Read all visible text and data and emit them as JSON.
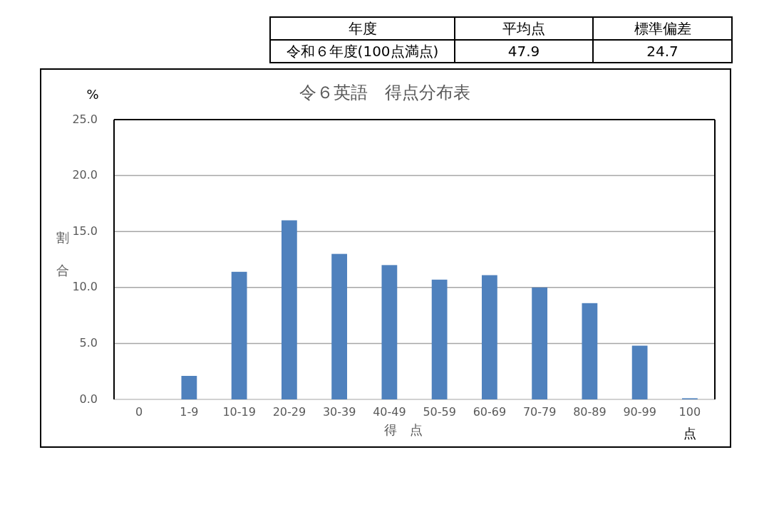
{
  "chart_data": {
    "type": "bar",
    "title": "令６英語　得点分布表",
    "xlabel": "得　点",
    "ylabel": "割合",
    "categories": [
      "0",
      "1-9",
      "10-19",
      "20-29",
      "30-39",
      "40-49",
      "50-59",
      "60-69",
      "70-79",
      "80-89",
      "90-99",
      "100"
    ],
    "values": [
      0,
      2.1,
      11.4,
      16.0,
      13.0,
      12.0,
      10.7,
      11.1,
      10.0,
      8.6,
      4.8,
      0.1
    ],
    "color": "#4f81bd",
    "ylim": [
      0,
      25
    ],
    "yticks": [
      {
        "value": 0,
        "label": "0.0"
      },
      {
        "value": 5,
        "label": "5.0"
      },
      {
        "value": 10,
        "label": "10.0"
      },
      {
        "value": 15,
        "label": "15.0"
      },
      {
        "value": 20,
        "label": "20.0"
      },
      {
        "value": 25,
        "label": "25.0"
      }
    ],
    "grid": "y",
    "annotations": [
      "%",
      "点",
      "年度",
      "平均点",
      "標準偏差",
      "令和６年度(100点満点)",
      "47.9",
      "24.7"
    ]
  }
}
